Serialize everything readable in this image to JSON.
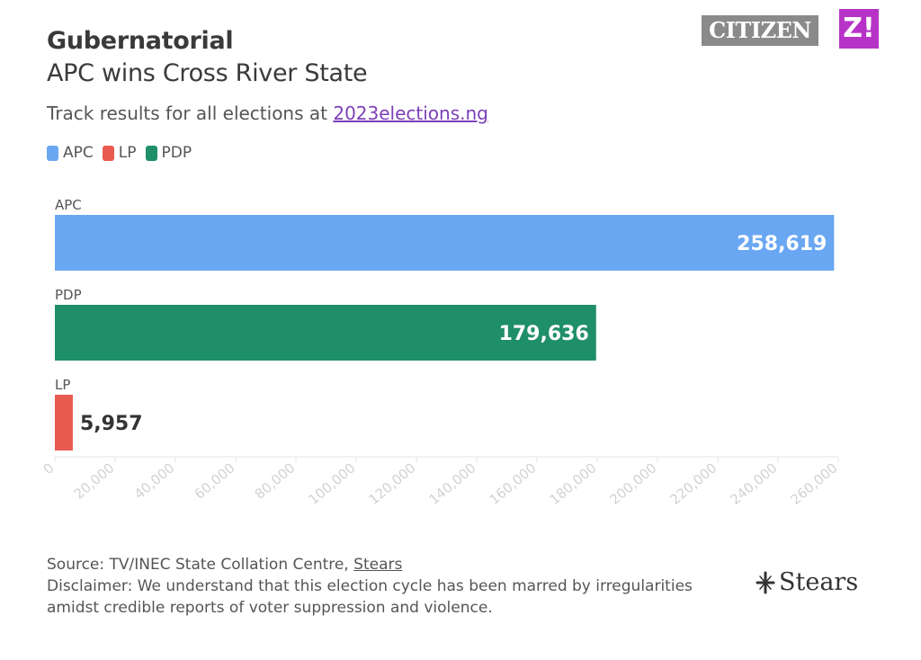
{
  "header": {
    "title": "Gubernatorial",
    "subtitle": "APC wins Cross River State",
    "track_prefix": "Track results for all elections at ",
    "track_link": "2023elections.ng"
  },
  "logos": {
    "citizen": "CITIZEN",
    "z": "Z!",
    "stears": "Stears"
  },
  "legend": [
    {
      "label": "APC",
      "color": "#6aa7f2"
    },
    {
      "label": "LP",
      "color": "#e85a4f"
    },
    {
      "label": "PDP",
      "color": "#1f8f6a"
    }
  ],
  "footer": {
    "source_prefix": "Source: TV/INEC State Collation Centre, ",
    "source_link": "Stears",
    "disclaimer": "Disclaimer: We understand that this election cycle has been marred by irregularities amidst credible reports of voter suppression and violence."
  },
  "chart_data": {
    "type": "bar",
    "orientation": "horizontal",
    "categories": [
      "APC",
      "PDP",
      "LP"
    ],
    "values": [
      258619,
      179636,
      5957
    ],
    "data_labels": [
      "258,619",
      "179,636",
      "5,957"
    ],
    "colors": [
      "#6aa7f2",
      "#1f8f6a",
      "#e85a4f"
    ],
    "xlim": [
      0,
      260000
    ],
    "ticks": [
      0,
      20000,
      40000,
      60000,
      80000,
      100000,
      120000,
      140000,
      160000,
      180000,
      200000,
      220000,
      240000,
      260000
    ],
    "tick_labels": [
      "0",
      "20,000",
      "40,000",
      "60,000",
      "80,000",
      "100,000",
      "120,000",
      "140,000",
      "160,000",
      "180,000",
      "200,000",
      "220,000",
      "240,000",
      "260,000"
    ],
    "grid": false,
    "legend_position": "top-left"
  }
}
